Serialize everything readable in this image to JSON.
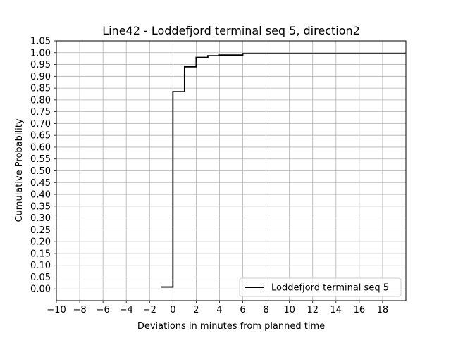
{
  "chart_data": {
    "type": "line",
    "title": "Line42 - Loddefjord terminal seq 5, direction2",
    "xlabel": "Deviations in minutes from planned time",
    "ylabel": "Cumulative Probability",
    "xlim": [
      -10,
      20
    ],
    "ylim": [
      -0.05,
      1.05
    ],
    "xticks": [
      -10,
      -8,
      -6,
      -4,
      -2,
      0,
      2,
      4,
      6,
      8,
      10,
      12,
      14,
      16,
      18
    ],
    "xtick_labels": [
      "−10",
      "−8",
      "−6",
      "−4",
      "−2",
      "0",
      "2",
      "4",
      "6",
      "8",
      "10",
      "12",
      "14",
      "16",
      "18"
    ],
    "yticks": [
      0.0,
      0.05,
      0.1,
      0.15,
      0.2,
      0.25,
      0.3,
      0.35,
      0.4,
      0.45,
      0.5,
      0.55,
      0.6,
      0.65,
      0.7,
      0.75,
      0.8,
      0.85,
      0.9,
      0.95,
      1.0,
      1.05
    ],
    "ytick_labels": [
      "0.00",
      "0.05",
      "0.10",
      "0.15",
      "0.20",
      "0.25",
      "0.30",
      "0.35",
      "0.40",
      "0.45",
      "0.50",
      "0.55",
      "0.60",
      "0.65",
      "0.70",
      "0.75",
      "0.80",
      "0.85",
      "0.90",
      "0.95",
      "1.00",
      "1.05"
    ],
    "grid": true,
    "legend_position": "lower-right",
    "series": [
      {
        "name": "Loddefjord terminal seq 5",
        "color": "#000000",
        "step": "post",
        "x": [
          -1,
          0,
          1,
          2,
          3,
          4,
          5,
          6,
          20
        ],
        "y": [
          0.008,
          0.835,
          0.94,
          0.98,
          0.987,
          0.99,
          0.99,
          0.996,
          0.996
        ]
      }
    ]
  }
}
